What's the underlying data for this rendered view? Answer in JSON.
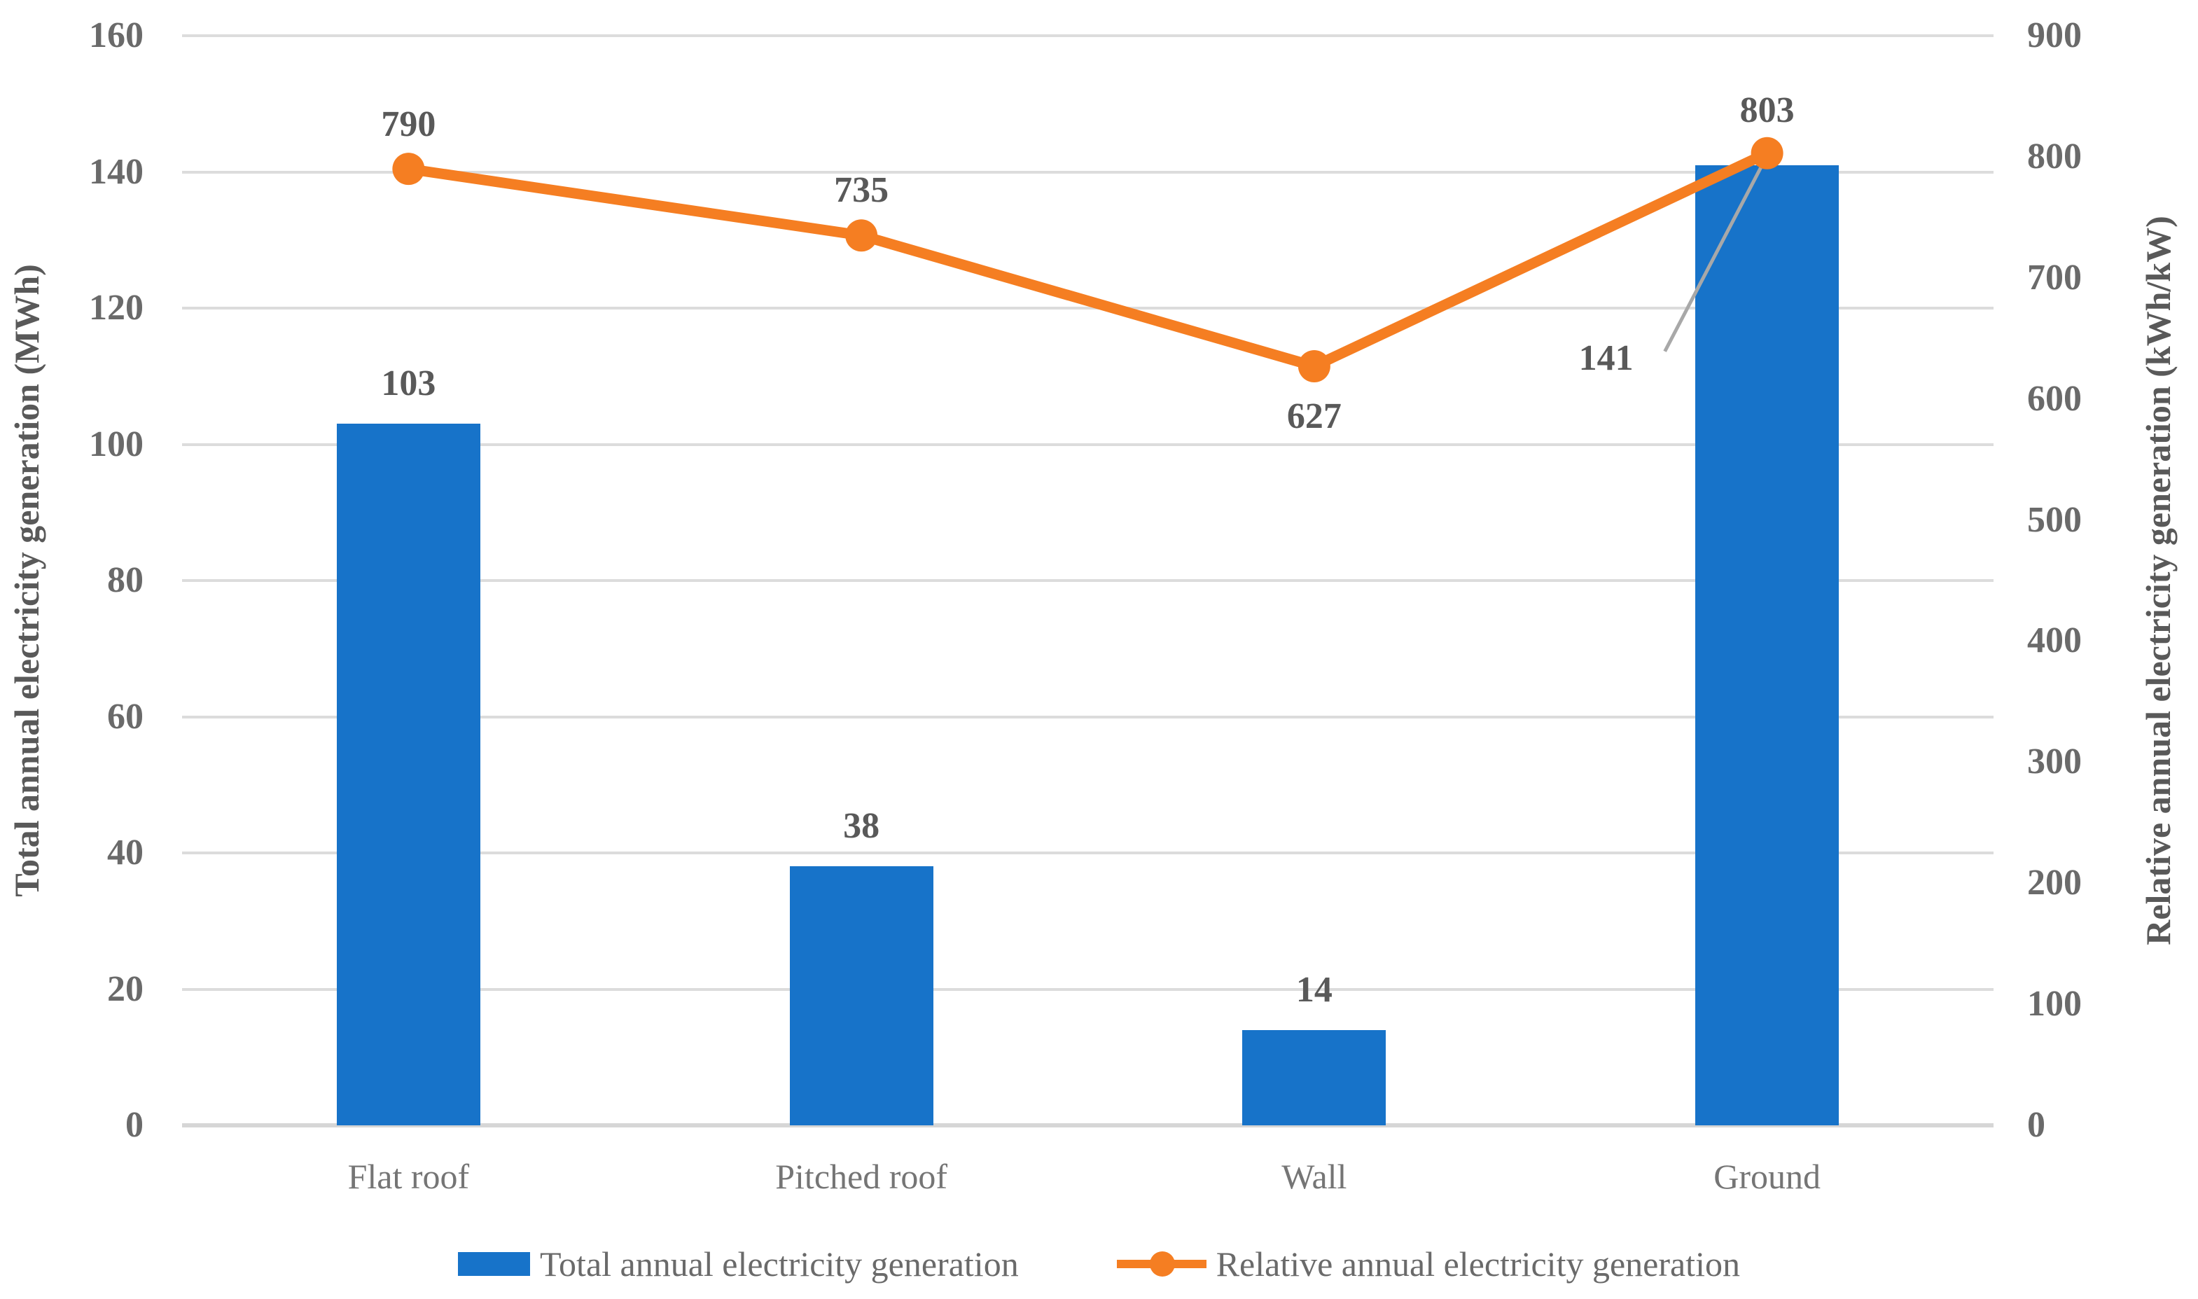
{
  "chart_data": {
    "type": "bar+line combo, dual axis",
    "categories": [
      "Flat roof",
      "Pitched roof",
      "Wall",
      "Ground"
    ],
    "series": [
      {
        "name": "Total annual electricity generation",
        "type": "bar",
        "axis": "left",
        "values": [
          103,
          38,
          14,
          141
        ],
        "data_labels": [
          "103",
          "38",
          "14",
          "141"
        ],
        "color": "#1773C9"
      },
      {
        "name": "Relative annual electricity generation",
        "type": "line",
        "axis": "right",
        "values": [
          790,
          735,
          627,
          803
        ],
        "data_labels": [
          "790",
          "735",
          "627",
          "803"
        ],
        "color": "#F57E22"
      }
    ],
    "left_axis": {
      "title": "Total annual electricity generation (MWh)",
      "min": 0,
      "max": 160,
      "step": 20,
      "tick_labels": [
        "0",
        "20",
        "40",
        "60",
        "80",
        "100",
        "120",
        "140",
        "160"
      ]
    },
    "right_axis": {
      "title": "Relative annual electricity generation (kWh/kW)",
      "min": 0,
      "max": 900,
      "step": 100,
      "tick_labels": [
        "0",
        "100",
        "200",
        "300",
        "400",
        "500",
        "600",
        "700",
        "800",
        "900"
      ]
    },
    "grid": true,
    "legend_position": "bottom",
    "callout": {
      "series": 0,
      "index": 3,
      "label": "141",
      "note": "bar data label drawn left of bar with gray leader line to bar top"
    }
  },
  "colors": {
    "bar": "#1773C9",
    "line": "#F57E22",
    "grid": "#DCDCDC",
    "axis_line": "#D6D6D6",
    "tick_text": "#6A6A6A",
    "category_text": "#757575",
    "data_label_text": "#595959",
    "axis_title_text": "#595959",
    "legend_text": "#6A6A6A",
    "leader_line": "#A8A8A8",
    "background": "#FFFFFF"
  }
}
